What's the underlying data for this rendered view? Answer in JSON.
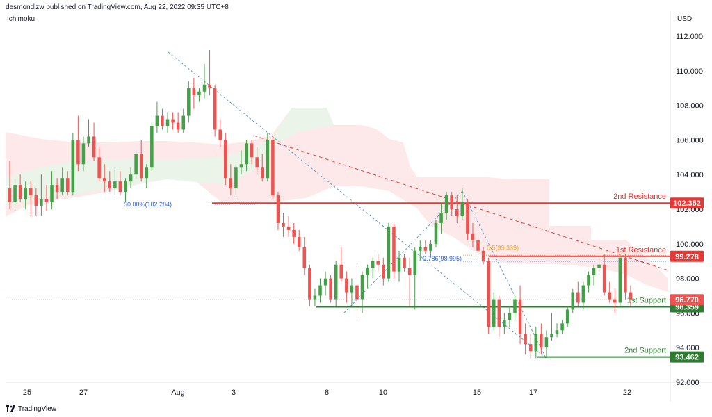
{
  "header": {
    "published_by": "desmondlzw published on TradingView.com, Aug 22, 2022 09:35 UTC+8"
  },
  "indicator_label": "Ichimoku",
  "currency": "USD",
  "footer": {
    "brand": "TradingView"
  },
  "colors": {
    "up": "#26a69a",
    "up_body": "#43a047",
    "down": "#ef5350",
    "support": "#2e7d32",
    "resistance": "#e53935",
    "fib": "#2962ff",
    "cloud_green": "#e8f5e9",
    "cloud_red": "#fde4e3"
  },
  "chart_data": {
    "type": "candlestick",
    "title": "",
    "ylim": [
      92,
      113
    ],
    "y_ticks": [
      "112.000",
      "110.000",
      "108.000",
      "106.000",
      "104.000",
      "102.000",
      "100.000",
      "98.000",
      "96.000",
      "94.000",
      "92.000"
    ],
    "x_ticks": [
      "25",
      "27",
      "Aug",
      "3",
      "8",
      "10",
      "15",
      "17",
      "22"
    ],
    "levels": [
      {
        "name": "2nd Resistance",
        "value": 102.352,
        "label": "102.352",
        "color": "#e53935"
      },
      {
        "name": "1st Resistance",
        "value": 99.278,
        "label": "99.278",
        "color": "#e53935"
      },
      {
        "name": "1st Support",
        "value": 96.359,
        "label": "96.359",
        "color": "#2e7d32"
      },
      {
        "name": "2nd Support",
        "value": 93.462,
        "label": "93.462",
        "color": "#2e7d32"
      }
    ],
    "last_price": {
      "value": 96.77,
      "label": "96.770"
    },
    "fib_labels": [
      {
        "text": "50.00%(102.284)",
        "value": 102.284
      },
      {
        "text": "0.786(98.995)",
        "value": 98.995
      },
      {
        "text": "0.5(99.339)",
        "value": 99.339
      }
    ],
    "candles": [
      {
        "o": 103.2,
        "h": 104.8,
        "l": 102.0,
        "c": 102.4
      },
      {
        "o": 102.4,
        "h": 103.8,
        "l": 101.9,
        "c": 103.4
      },
      {
        "o": 103.4,
        "h": 104.0,
        "l": 102.4,
        "c": 102.6
      },
      {
        "o": 102.6,
        "h": 103.6,
        "l": 102.0,
        "c": 103.2
      },
      {
        "o": 103.2,
        "h": 103.6,
        "l": 101.6,
        "c": 102.8
      },
      {
        "o": 102.8,
        "h": 103.2,
        "l": 101.6,
        "c": 102.2
      },
      {
        "o": 102.2,
        "h": 104.0,
        "l": 101.6,
        "c": 102.6
      },
      {
        "o": 102.6,
        "h": 103.4,
        "l": 101.9,
        "c": 102.4
      },
      {
        "o": 102.4,
        "h": 104.2,
        "l": 102.0,
        "c": 103.4
      },
      {
        "o": 103.4,
        "h": 103.8,
        "l": 102.6,
        "c": 103.0
      },
      {
        "o": 103.0,
        "h": 104.4,
        "l": 102.8,
        "c": 103.8
      },
      {
        "o": 103.8,
        "h": 104.2,
        "l": 102.8,
        "c": 103.0
      },
      {
        "o": 103.0,
        "h": 106.4,
        "l": 102.8,
        "c": 106.0
      },
      {
        "o": 106.0,
        "h": 107.4,
        "l": 104.2,
        "c": 104.6
      },
      {
        "o": 104.6,
        "h": 106.2,
        "l": 104.2,
        "c": 105.8
      },
      {
        "o": 105.8,
        "h": 107.2,
        "l": 105.6,
        "c": 106.2
      },
      {
        "o": 106.2,
        "h": 107.0,
        "l": 104.8,
        "c": 105.0
      },
      {
        "o": 105.0,
        "h": 105.6,
        "l": 103.6,
        "c": 103.8
      },
      {
        "o": 103.8,
        "h": 104.6,
        "l": 103.0,
        "c": 103.6
      },
      {
        "o": 103.6,
        "h": 104.2,
        "l": 103.0,
        "c": 103.2
      },
      {
        "o": 103.2,
        "h": 104.4,
        "l": 102.8,
        "c": 103.6
      },
      {
        "o": 103.6,
        "h": 104.2,
        "l": 102.8,
        "c": 103.0
      },
      {
        "o": 103.0,
        "h": 103.8,
        "l": 102.4,
        "c": 103.6
      },
      {
        "o": 103.6,
        "h": 104.4,
        "l": 103.2,
        "c": 104.0
      },
      {
        "o": 104.0,
        "h": 105.4,
        "l": 103.8,
        "c": 105.2
      },
      {
        "o": 105.2,
        "h": 106.0,
        "l": 103.6,
        "c": 103.8
      },
      {
        "o": 103.8,
        "h": 104.6,
        "l": 103.2,
        "c": 104.4
      },
      {
        "o": 104.4,
        "h": 107.0,
        "l": 104.2,
        "c": 106.8
      },
      {
        "o": 106.8,
        "h": 108.2,
        "l": 106.4,
        "c": 107.4
      },
      {
        "o": 107.4,
        "h": 107.8,
        "l": 106.6,
        "c": 106.8
      },
      {
        "o": 106.8,
        "h": 107.6,
        "l": 106.4,
        "c": 107.2
      },
      {
        "o": 107.2,
        "h": 107.6,
        "l": 106.6,
        "c": 107.0
      },
      {
        "o": 107.0,
        "h": 107.6,
        "l": 106.4,
        "c": 106.6
      },
      {
        "o": 106.6,
        "h": 107.8,
        "l": 106.4,
        "c": 107.4
      },
      {
        "o": 107.4,
        "h": 109.4,
        "l": 107.0,
        "c": 109.0
      },
      {
        "o": 109.0,
        "h": 109.6,
        "l": 107.8,
        "c": 108.6
      },
      {
        "o": 108.6,
        "h": 109.0,
        "l": 108.2,
        "c": 108.8
      },
      {
        "o": 108.8,
        "h": 110.4,
        "l": 108.4,
        "c": 109.2
      },
      {
        "o": 109.2,
        "h": 111.2,
        "l": 108.6,
        "c": 109.0
      },
      {
        "o": 109.0,
        "h": 109.2,
        "l": 106.2,
        "c": 106.6
      },
      {
        "o": 106.6,
        "h": 107.2,
        "l": 105.6,
        "c": 106.0
      },
      {
        "o": 106.0,
        "h": 106.4,
        "l": 103.4,
        "c": 103.8
      },
      {
        "o": 103.8,
        "h": 104.6,
        "l": 102.8,
        "c": 103.2
      },
      {
        "o": 103.2,
        "h": 104.6,
        "l": 102.8,
        "c": 104.4
      },
      {
        "o": 104.4,
        "h": 105.4,
        "l": 104.0,
        "c": 104.6
      },
      {
        "o": 104.6,
        "h": 106.0,
        "l": 104.2,
        "c": 105.8
      },
      {
        "o": 105.8,
        "h": 106.0,
        "l": 104.6,
        "c": 105.0
      },
      {
        "o": 105.0,
        "h": 105.6,
        "l": 104.0,
        "c": 104.4
      },
      {
        "o": 104.4,
        "h": 105.2,
        "l": 103.6,
        "c": 103.8
      },
      {
        "o": 103.8,
        "h": 106.4,
        "l": 103.6,
        "c": 106.0
      },
      {
        "o": 106.0,
        "h": 106.2,
        "l": 102.6,
        "c": 102.8
      },
      {
        "o": 102.8,
        "h": 103.0,
        "l": 100.8,
        "c": 101.2
      },
      {
        "o": 101.2,
        "h": 101.8,
        "l": 100.4,
        "c": 101.0
      },
      {
        "o": 101.0,
        "h": 101.6,
        "l": 100.4,
        "c": 100.8
      },
      {
        "o": 100.8,
        "h": 101.2,
        "l": 100.0,
        "c": 100.4
      },
      {
        "o": 100.4,
        "h": 100.8,
        "l": 99.6,
        "c": 99.8
      },
      {
        "o": 99.8,
        "h": 100.4,
        "l": 98.2,
        "c": 98.6
      },
      {
        "o": 98.6,
        "h": 98.8,
        "l": 96.4,
        "c": 96.8
      },
      {
        "o": 96.8,
        "h": 97.4,
        "l": 96.4,
        "c": 97.0
      },
      {
        "o": 97.0,
        "h": 98.0,
        "l": 96.6,
        "c": 97.6
      },
      {
        "o": 97.6,
        "h": 98.4,
        "l": 97.0,
        "c": 98.0
      },
      {
        "o": 98.0,
        "h": 98.2,
        "l": 96.6,
        "c": 96.8
      },
      {
        "o": 96.8,
        "h": 99.0,
        "l": 96.4,
        "c": 98.8
      },
      {
        "o": 98.8,
        "h": 99.8,
        "l": 97.8,
        "c": 98.0
      },
      {
        "o": 98.0,
        "h": 98.4,
        "l": 96.6,
        "c": 97.2
      },
      {
        "o": 97.2,
        "h": 98.0,
        "l": 96.4,
        "c": 97.6
      },
      {
        "o": 97.6,
        "h": 98.8,
        "l": 95.6,
        "c": 96.8
      },
      {
        "o": 96.8,
        "h": 98.4,
        "l": 96.0,
        "c": 98.2
      },
      {
        "o": 98.2,
        "h": 98.8,
        "l": 97.4,
        "c": 98.6
      },
      {
        "o": 98.6,
        "h": 99.2,
        "l": 98.0,
        "c": 99.0
      },
      {
        "o": 99.0,
        "h": 99.4,
        "l": 98.4,
        "c": 98.8
      },
      {
        "o": 98.8,
        "h": 99.2,
        "l": 97.6,
        "c": 98.0
      },
      {
        "o": 98.0,
        "h": 101.2,
        "l": 97.8,
        "c": 101.0
      },
      {
        "o": 101.0,
        "h": 101.2,
        "l": 98.0,
        "c": 98.4
      },
      {
        "o": 98.4,
        "h": 99.6,
        "l": 97.8,
        "c": 99.2
      },
      {
        "o": 99.2,
        "h": 99.4,
        "l": 98.4,
        "c": 98.6
      },
      {
        "o": 98.6,
        "h": 99.2,
        "l": 96.4,
        "c": 98.2
      },
      {
        "o": 98.2,
        "h": 99.8,
        "l": 96.2,
        "c": 99.6
      },
      {
        "o": 99.6,
        "h": 100.2,
        "l": 99.0,
        "c": 99.8
      },
      {
        "o": 99.8,
        "h": 100.2,
        "l": 99.4,
        "c": 99.6
      },
      {
        "o": 99.6,
        "h": 100.2,
        "l": 99.2,
        "c": 100.0
      },
      {
        "o": 100.0,
        "h": 101.4,
        "l": 99.8,
        "c": 101.2
      },
      {
        "o": 101.2,
        "h": 102.4,
        "l": 100.6,
        "c": 101.8
      },
      {
        "o": 101.8,
        "h": 103.0,
        "l": 101.4,
        "c": 102.8
      },
      {
        "o": 102.8,
        "h": 103.0,
        "l": 101.6,
        "c": 102.0
      },
      {
        "o": 102.0,
        "h": 102.8,
        "l": 101.2,
        "c": 101.6
      },
      {
        "o": 101.6,
        "h": 103.2,
        "l": 101.4,
        "c": 102.4
      },
      {
        "o": 102.4,
        "h": 102.6,
        "l": 100.2,
        "c": 100.6
      },
      {
        "o": 100.6,
        "h": 101.2,
        "l": 99.8,
        "c": 100.2
      },
      {
        "o": 100.2,
        "h": 100.6,
        "l": 99.4,
        "c": 99.6
      },
      {
        "o": 99.6,
        "h": 99.8,
        "l": 98.8,
        "c": 99.0
      },
      {
        "o": 99.0,
        "h": 99.2,
        "l": 94.8,
        "c": 95.2
      },
      {
        "o": 95.2,
        "h": 97.2,
        "l": 95.0,
        "c": 96.8
      },
      {
        "o": 96.8,
        "h": 97.0,
        "l": 94.6,
        "c": 95.2
      },
      {
        "o": 95.2,
        "h": 96.0,
        "l": 94.8,
        "c": 95.6
      },
      {
        "o": 95.6,
        "h": 96.4,
        "l": 95.2,
        "c": 96.0
      },
      {
        "o": 96.0,
        "h": 97.0,
        "l": 95.6,
        "c": 96.8
      },
      {
        "o": 96.8,
        "h": 97.6,
        "l": 94.2,
        "c": 94.8
      },
      {
        "o": 94.8,
        "h": 95.4,
        "l": 93.6,
        "c": 94.2
      },
      {
        "o": 94.2,
        "h": 94.8,
        "l": 93.4,
        "c": 93.8
      },
      {
        "o": 93.8,
        "h": 95.2,
        "l": 93.4,
        "c": 94.8
      },
      {
        "o": 94.8,
        "h": 95.4,
        "l": 93.6,
        "c": 94.0
      },
      {
        "o": 94.0,
        "h": 95.0,
        "l": 93.4,
        "c": 94.6
      },
      {
        "o": 94.6,
        "h": 96.0,
        "l": 94.4,
        "c": 94.8
      },
      {
        "o": 94.8,
        "h": 95.4,
        "l": 94.6,
        "c": 95.0
      },
      {
        "o": 95.0,
        "h": 95.6,
        "l": 94.8,
        "c": 95.4
      },
      {
        "o": 95.4,
        "h": 96.4,
        "l": 95.2,
        "c": 96.2
      },
      {
        "o": 96.2,
        "h": 97.4,
        "l": 96.0,
        "c": 97.2
      },
      {
        "o": 97.2,
        "h": 97.8,
        "l": 96.4,
        "c": 96.6
      },
      {
        "o": 96.6,
        "h": 97.8,
        "l": 96.2,
        "c": 97.6
      },
      {
        "o": 97.6,
        "h": 98.4,
        "l": 97.2,
        "c": 98.2
      },
      {
        "o": 98.2,
        "h": 98.8,
        "l": 97.6,
        "c": 98.6
      },
      {
        "o": 98.6,
        "h": 99.2,
        "l": 98.2,
        "c": 98.8
      },
      {
        "o": 98.8,
        "h": 99.4,
        "l": 97.0,
        "c": 97.2
      },
      {
        "o": 97.2,
        "h": 97.8,
        "l": 96.6,
        "c": 96.8
      },
      {
        "o": 96.8,
        "h": 97.4,
        "l": 96.0,
        "c": 96.6
      },
      {
        "o": 96.6,
        "h": 99.4,
        "l": 96.4,
        "c": 99.2
      },
      {
        "o": 99.2,
        "h": 99.4,
        "l": 96.8,
        "c": 97.2
      },
      {
        "o": 97.2,
        "h": 97.6,
        "l": 96.4,
        "c": 96.8
      }
    ]
  }
}
